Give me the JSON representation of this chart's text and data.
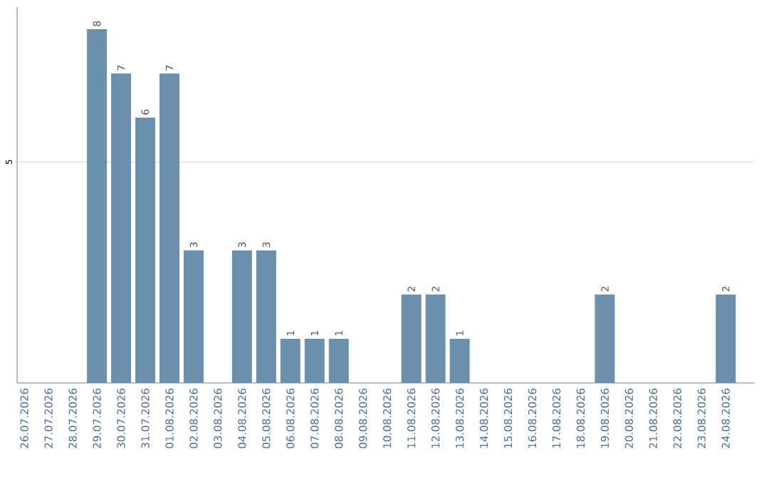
{
  "chart_data": {
    "type": "bar",
    "categories": [
      "26.07.2026",
      "27.07.2026",
      "28.07.2026",
      "29.07.2026",
      "30.07.2026",
      "31.07.2026",
      "01.08.2026",
      "02.08.2026",
      "03.08.2026",
      "04.08.2026",
      "05.08.2026",
      "06.08.2026",
      "07.08.2026",
      "08.08.2026",
      "09.08.2026",
      "10.08.2026",
      "11.08.2026",
      "12.08.2026",
      "13.08.2026",
      "14.08.2026",
      "15.08.2026",
      "16.08.2026",
      "17.08.2026",
      "18.08.2026",
      "19.08.2026",
      "20.08.2026",
      "21.08.2026",
      "22.08.2026",
      "23.08.2026",
      "24.08.2026"
    ],
    "values": [
      0,
      0,
      0,
      8,
      7,
      6,
      7,
      3,
      0,
      3,
      3,
      1,
      1,
      1,
      0,
      0,
      2,
      2,
      1,
      0,
      0,
      0,
      0,
      0,
      2,
      0,
      0,
      0,
      0,
      2
    ],
    "value_labels": [
      null,
      null,
      null,
      "8",
      "7",
      "6",
      "7",
      "3",
      null,
      "3",
      "3",
      "1",
      "1",
      "1",
      null,
      null,
      "2",
      "2",
      "1",
      null,
      null,
      null,
      null,
      null,
      "2",
      null,
      null,
      null,
      null,
      "2"
    ],
    "color": "#6d8fae",
    "ylim": [
      0,
      8.5
    ],
    "yticks": [
      5
    ],
    "grid": "y"
  }
}
